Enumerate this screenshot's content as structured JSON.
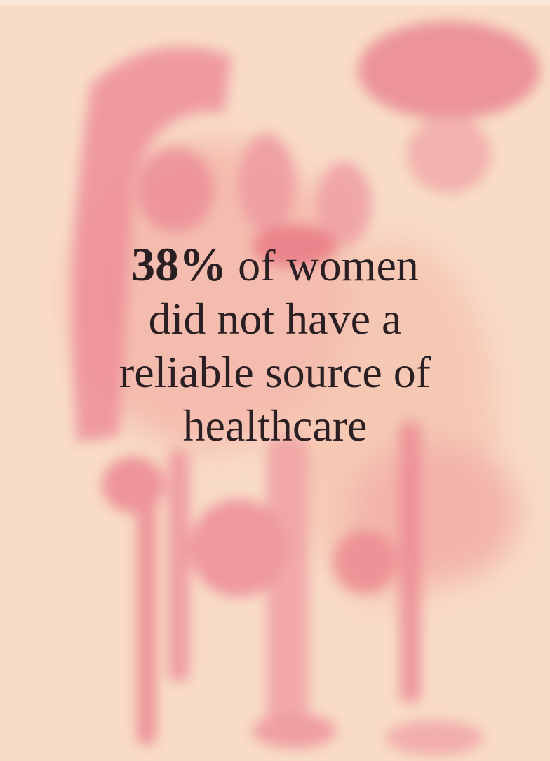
{
  "stat": "38%",
  "lines": [
    "of women",
    "did not have a",
    "reliable source of",
    "healthcare"
  ]
}
